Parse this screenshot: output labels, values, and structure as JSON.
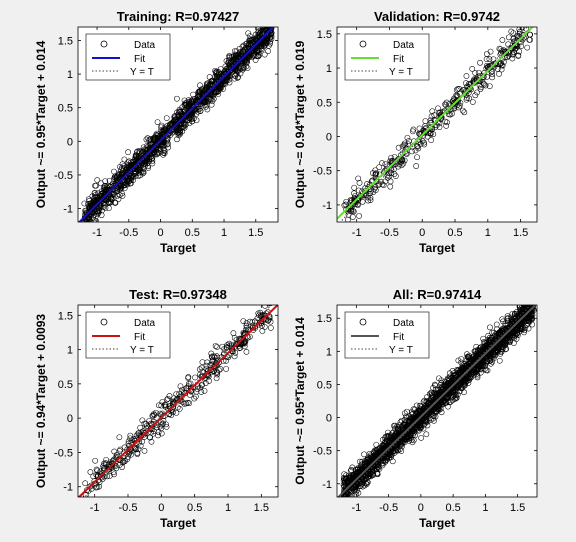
{
  "chart_data": [
    {
      "type": "scatter",
      "title": "Training: R=0.97427",
      "xlabel": "Target",
      "ylabel": "Output ~= 0.95*Target + 0.014",
      "xlim": [
        -1.3,
        1.85
      ],
      "ylim": [
        -1.2,
        1.7
      ],
      "xticks": [
        -1,
        -0.5,
        0,
        0.5,
        1,
        1.5
      ],
      "xtick_labels": [
        "-1",
        "-0.5",
        "0",
        "0.5",
        "1",
        "1.5"
      ],
      "yticks": [
        -1,
        -0.5,
        0,
        0.5,
        1,
        1.5
      ],
      "ytick_labels": [
        "-1",
        "-0.5",
        "0",
        "0.5",
        "1",
        "1.5"
      ],
      "legend": [
        "Data",
        "Fit",
        "Y = T"
      ],
      "legend_position": "top-left",
      "fit": {
        "slope": 0.95,
        "intercept": 0.014,
        "color": "#1010d0"
      },
      "data": {
        "n": 1500,
        "x_range": [
          -1.2,
          1.75
        ],
        "noise": 0.1,
        "seed": 11
      }
    },
    {
      "type": "scatter",
      "title": "Validation: R=0.9742",
      "xlabel": "Target",
      "ylabel": "Output ~= 0.94*Target + 0.019",
      "xlim": [
        -1.3,
        1.75
      ],
      "ylim": [
        -1.25,
        1.6
      ],
      "xticks": [
        -1,
        -0.5,
        0,
        0.5,
        1,
        1.5
      ],
      "xtick_labels": [
        "-1",
        "-0.5",
        "0",
        "0.5",
        "1",
        "1.5"
      ],
      "yticks": [
        -1,
        -0.5,
        0,
        0.5,
        1,
        1.5
      ],
      "ytick_labels": [
        "-1",
        "-0.5",
        "0",
        "0.5",
        "1",
        "1.5"
      ],
      "legend": [
        "Data",
        "Fit",
        "Y = T"
      ],
      "legend_position": "top-left",
      "fit": {
        "slope": 0.94,
        "intercept": 0.019,
        "color": "#66dd33"
      },
      "data": {
        "n": 420,
        "x_range": [
          -1.2,
          1.65
        ],
        "noise": 0.1,
        "seed": 23
      }
    },
    {
      "type": "scatter",
      "title": "Test: R=0.97348",
      "xlabel": "Target",
      "ylabel": "Output ~= 0.94*Target + 0.0093",
      "xlim": [
        -1.25,
        1.75
      ],
      "ylim": [
        -1.15,
        1.65
      ],
      "xticks": [
        -1,
        -0.5,
        0,
        0.5,
        1,
        1.5
      ],
      "xtick_labels": [
        "-1",
        "-0.5",
        "0",
        "0.5",
        "1",
        "1.5"
      ],
      "yticks": [
        -1,
        -0.5,
        0,
        0.5,
        1,
        1.5
      ],
      "ytick_labels": [
        "-1",
        "-0.5",
        "0",
        "0.5",
        "1",
        "1.5"
      ],
      "legend": [
        "Data",
        "Fit",
        "Y = T"
      ],
      "legend_position": "top-left",
      "fit": {
        "slope": 0.94,
        "intercept": 0.0093,
        "color": "#cc1111"
      },
      "data": {
        "n": 420,
        "x_range": [
          -1.15,
          1.65
        ],
        "noise": 0.1,
        "seed": 37
      }
    },
    {
      "type": "scatter",
      "title": "All: R=0.97414",
      "xlabel": "Target",
      "ylabel": "Output ~= 0.95*Target + 0.014",
      "xlim": [
        -1.3,
        1.8
      ],
      "ylim": [
        -1.2,
        1.7
      ],
      "xticks": [
        -1,
        -0.5,
        0,
        0.5,
        1,
        1.5
      ],
      "xtick_labels": [
        "-1",
        "-0.5",
        "0",
        "0.5",
        "1",
        "1.5"
      ],
      "yticks": [
        -1,
        -0.5,
        0,
        0.5,
        1,
        1.5
      ],
      "ytick_labels": [
        "-1",
        "-0.5",
        "0",
        "0.5",
        "1",
        "1.5"
      ],
      "legend": [
        "Data",
        "Fit",
        "Y = T"
      ],
      "legend_position": "top-left",
      "fit": {
        "slope": 0.95,
        "intercept": 0.014,
        "color": "#555555"
      },
      "data": {
        "n": 2300,
        "x_range": [
          -1.2,
          1.75
        ],
        "noise": 0.1,
        "seed": 53
      }
    }
  ]
}
